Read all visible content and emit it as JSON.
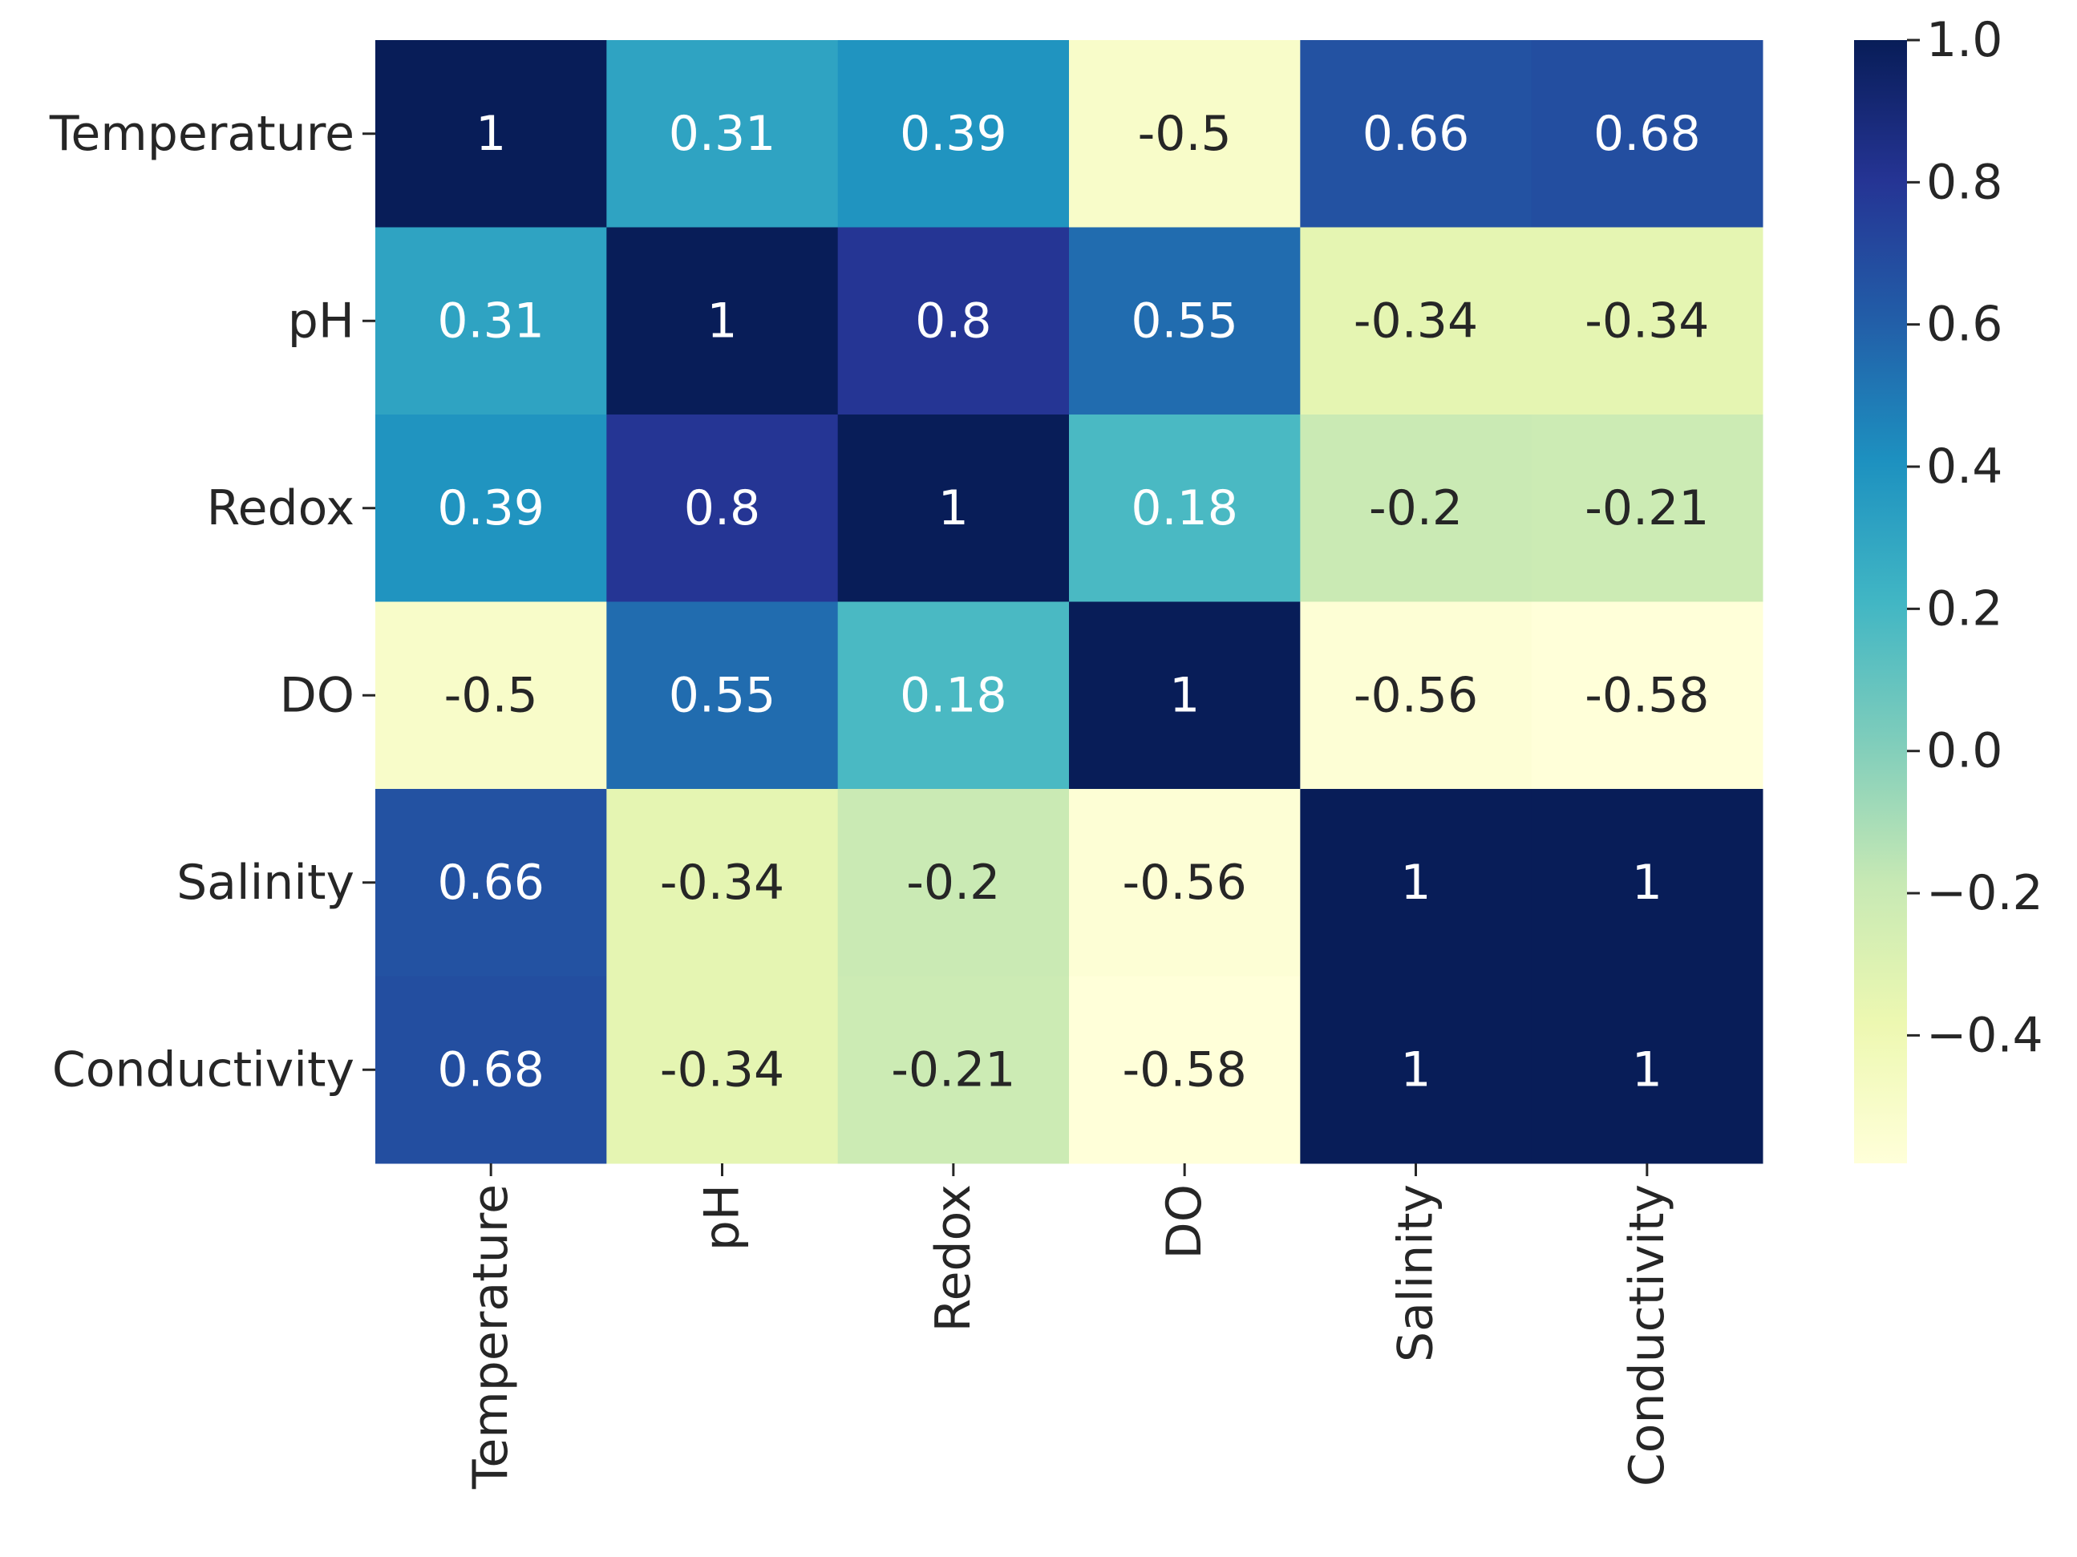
{
  "chart_data": {
    "type": "heatmap",
    "x_categories": [
      "Temperature",
      "pH",
      "Redox",
      "DO",
      "Salinity",
      "Conductivity"
    ],
    "y_categories": [
      "Temperature",
      "pH",
      "Redox",
      "DO",
      "Salinity",
      "Conductivity"
    ],
    "values": [
      [
        1,
        0.31,
        0.39,
        -0.5,
        0.66,
        0.68
      ],
      [
        0.31,
        1,
        0.8,
        0.55,
        -0.34,
        -0.34
      ],
      [
        0.39,
        0.8,
        1,
        0.18,
        -0.2,
        -0.21
      ],
      [
        -0.5,
        0.55,
        0.18,
        1,
        -0.56,
        -0.58
      ],
      [
        0.66,
        -0.34,
        -0.2,
        -0.56,
        1,
        1
      ],
      [
        0.68,
        -0.34,
        -0.21,
        -0.58,
        1,
        1
      ]
    ],
    "colorscale": [
      "#ffffd9",
      "#edf8b1",
      "#c7e9b4",
      "#7fcdbb",
      "#41b6c4",
      "#1d91c0",
      "#225ea8",
      "#253494",
      "#081d58"
    ],
    "colorbar_lim": [
      -0.58,
      1
    ],
    "colorbar_ticks": [
      {
        "value": 1,
        "label": "1.0"
      },
      0.8,
      0.6,
      0.4,
      0.2,
      {
        "value": 0,
        "label": "0.0"
      },
      {
        "value": -0.2,
        "label": "−0.2"
      },
      {
        "value": -0.4,
        "label": "−0.4"
      }
    ]
  }
}
